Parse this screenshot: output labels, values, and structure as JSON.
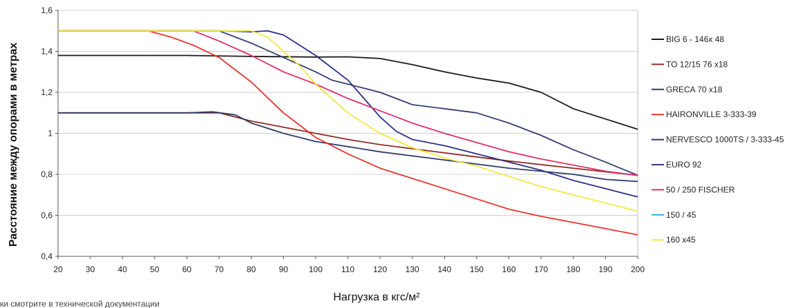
{
  "chart_data": {
    "type": "line",
    "xlabel": "Нагрузка в кгс/м²",
    "ylabel": "Расстояние между опорами в метрах",
    "xlim": [
      20,
      200
    ],
    "ylim": [
      0.4,
      1.6
    ],
    "x_ticks": [
      "20",
      "30",
      "40",
      "50",
      "60",
      "70",
      "80",
      "90",
      "100",
      "110",
      "120",
      "130",
      "140",
      "150",
      "160",
      "170",
      "180",
      "190",
      "200"
    ],
    "y_ticks": [
      "0,4",
      "0,6",
      "0,8",
      "1",
      "1,2",
      "1,4",
      "1,6"
    ],
    "grid": "horizontal",
    "legend_position": "right",
    "footnote": "ки смотрите в технической документации",
    "series": [
      {
        "name": "BIG 6 - 146x 48",
        "color": "#1a1a1a",
        "points": [
          [
            20,
            1.38
          ],
          [
            60,
            1.38
          ],
          [
            80,
            1.375
          ],
          [
            100,
            1.372
          ],
          [
            110,
            1.373
          ],
          [
            120,
            1.365
          ],
          [
            130,
            1.335
          ],
          [
            140,
            1.3
          ],
          [
            150,
            1.27
          ],
          [
            160,
            1.245
          ],
          [
            170,
            1.2
          ],
          [
            180,
            1.12
          ],
          [
            190,
            1.07
          ],
          [
            200,
            1.02
          ]
        ]
      },
      {
        "name": "TO 12/15 76 x18",
        "color": "#8e2a22",
        "points": [
          [
            20,
            1.1
          ],
          [
            60,
            1.1
          ],
          [
            70,
            1.1
          ],
          [
            80,
            1.06
          ],
          [
            90,
            1.03
          ],
          [
            100,
            1.0
          ],
          [
            110,
            0.97
          ],
          [
            120,
            0.945
          ],
          [
            140,
            0.905
          ],
          [
            160,
            0.865
          ],
          [
            180,
            0.83
          ],
          [
            200,
            0.795
          ]
        ]
      },
      {
        "name": "GRECA 70 x18",
        "color": "#2e3b6b",
        "points": [
          [
            20,
            1.1
          ],
          [
            60,
            1.1
          ],
          [
            68,
            1.105
          ],
          [
            75,
            1.09
          ],
          [
            80,
            1.05
          ],
          [
            90,
            1.0
          ],
          [
            100,
            0.96
          ],
          [
            110,
            0.935
          ],
          [
            120,
            0.91
          ],
          [
            140,
            0.87
          ],
          [
            160,
            0.83
          ],
          [
            180,
            0.8
          ],
          [
            190,
            0.775
          ],
          [
            200,
            0.765
          ]
        ]
      },
      {
        "name": "HAIRONVILLE  3-333-39",
        "color": "#e8322e",
        "points": [
          [
            20,
            1.5
          ],
          [
            48,
            1.5
          ],
          [
            55,
            1.47
          ],
          [
            62,
            1.43
          ],
          [
            70,
            1.37
          ],
          [
            80,
            1.25
          ],
          [
            90,
            1.1
          ],
          [
            100,
            0.98
          ],
          [
            110,
            0.9
          ],
          [
            120,
            0.83
          ],
          [
            130,
            0.78
          ],
          [
            140,
            0.73
          ],
          [
            150,
            0.68
          ],
          [
            160,
            0.63
          ],
          [
            170,
            0.595
          ],
          [
            180,
            0.565
          ],
          [
            190,
            0.535
          ],
          [
            200,
            0.505
          ]
        ]
      },
      {
        "name": "NERVESCO 1000TS / 3-333-45",
        "color": "#2a2f87",
        "points": [
          [
            20,
            1.5
          ],
          [
            72,
            1.5
          ],
          [
            80,
            1.495
          ],
          [
            85,
            1.5
          ],
          [
            90,
            1.48
          ],
          [
            95,
            1.43
          ],
          [
            100,
            1.38
          ],
          [
            110,
            1.26
          ],
          [
            115,
            1.17
          ],
          [
            120,
            1.08
          ],
          [
            125,
            1.01
          ],
          [
            130,
            0.97
          ],
          [
            140,
            0.94
          ],
          [
            150,
            0.9
          ],
          [
            160,
            0.86
          ],
          [
            170,
            0.82
          ],
          [
            180,
            0.77
          ],
          [
            190,
            0.73
          ],
          [
            200,
            0.69
          ]
        ]
      },
      {
        "name": "EURO 92",
        "color": "#343d73",
        "points": [
          [
            20,
            1.5
          ],
          [
            70,
            1.5
          ],
          [
            80,
            1.44
          ],
          [
            90,
            1.37
          ],
          [
            100,
            1.3
          ],
          [
            105,
            1.26
          ],
          [
            110,
            1.24
          ],
          [
            120,
            1.2
          ],
          [
            130,
            1.14
          ],
          [
            140,
            1.12
          ],
          [
            150,
            1.1
          ],
          [
            160,
            1.05
          ],
          [
            170,
            0.99
          ],
          [
            180,
            0.92
          ],
          [
            190,
            0.86
          ],
          [
            200,
            0.795
          ]
        ]
      },
      {
        "name": "50 / 250 FISCHER",
        "color": "#de2f6a",
        "points": [
          [
            20,
            1.5
          ],
          [
            62,
            1.5
          ],
          [
            70,
            1.45
          ],
          [
            80,
            1.38
          ],
          [
            90,
            1.3
          ],
          [
            100,
            1.24
          ],
          [
            110,
            1.17
          ],
          [
            120,
            1.11
          ],
          [
            130,
            1.05
          ],
          [
            140,
            1.0
          ],
          [
            150,
            0.955
          ],
          [
            160,
            0.91
          ],
          [
            170,
            0.875
          ],
          [
            180,
            0.845
          ],
          [
            190,
            0.815
          ],
          [
            200,
            0.795
          ]
        ]
      },
      {
        "name": "150 / 45",
        "color": "#2fa9dc",
        "points": []
      },
      {
        "name": "160 x45",
        "color": "#f5e642",
        "points": [
          [
            20,
            1.5
          ],
          [
            76,
            1.5
          ],
          [
            80,
            1.5
          ],
          [
            85,
            1.47
          ],
          [
            90,
            1.4
          ],
          [
            95,
            1.33
          ],
          [
            100,
            1.24
          ],
          [
            110,
            1.1
          ],
          [
            120,
            1.0
          ],
          [
            130,
            0.93
          ],
          [
            140,
            0.88
          ],
          [
            150,
            0.84
          ],
          [
            160,
            0.79
          ],
          [
            170,
            0.74
          ],
          [
            180,
            0.7
          ],
          [
            190,
            0.66
          ],
          [
            200,
            0.62
          ]
        ]
      }
    ]
  }
}
